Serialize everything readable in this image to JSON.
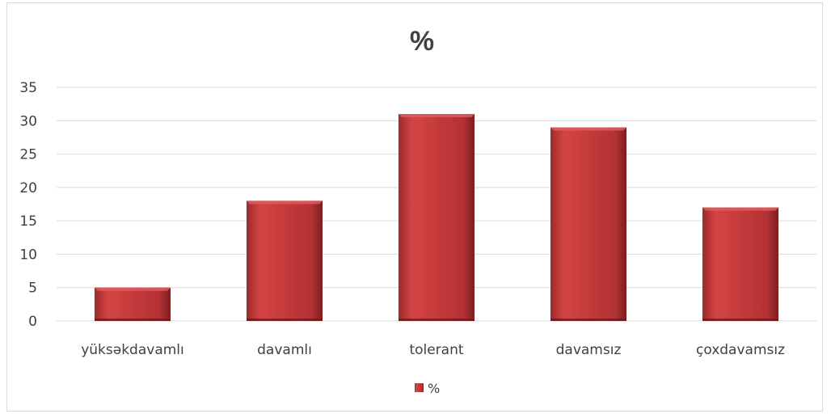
{
  "chart_data": {
    "type": "bar",
    "title": "%",
    "categories": [
      "yüksəkdavamlı",
      "davamlı",
      "tolerant",
      "davamsız",
      "çoxdavamsız"
    ],
    "series": [
      {
        "name": "%",
        "values": [
          5,
          18,
          31,
          29,
          17
        ],
        "color": "#c0383a"
      }
    ],
    "ylim": [
      0,
      35
    ],
    "yticks": [
      "0",
      "5",
      "10",
      "15",
      "20",
      "25",
      "30",
      "35"
    ],
    "grid": true,
    "legend": "bottom"
  }
}
